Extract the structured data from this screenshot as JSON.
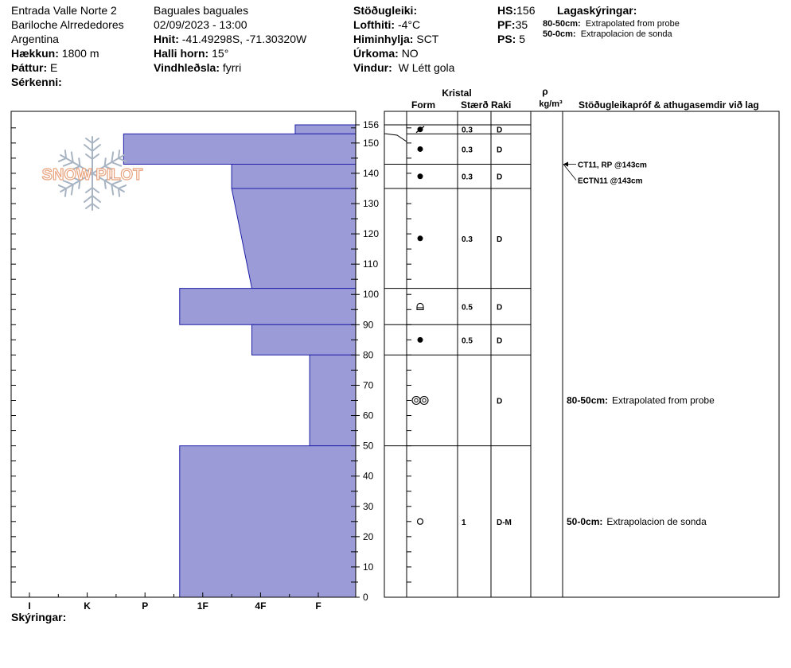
{
  "header": {
    "site_name": "Entrada Valle Norte 2",
    "location": "Bariloche Alrrededores",
    "country": "Argentina",
    "elevation_label": "Hækkun:",
    "elevation_value": "1800 m",
    "aspect_label": "Þáttur:",
    "aspect_value": "E",
    "features_label": "Sérkenni:",
    "observer": "Baguales baguales",
    "datetime": "02/09/2023 - 13:00",
    "coords_label": "Hnit:",
    "coords_value": "-41.49298S, -71.30320W",
    "slope_label": "Halli horn:",
    "slope_value": "15°",
    "wind_loading_label": "Vindhleðsla:",
    "wind_loading_value": "fyrri",
    "stability_label": "Stöðugleiki:",
    "air_temp_label": "Lofthiti:",
    "air_temp_value": "-4°C",
    "sky_label": "Himinhylja:",
    "sky_value": "SCT",
    "precip_label": "Úrkoma:",
    "precip_value": "NO",
    "wind_label": "Vindur:",
    "wind_value": "W Létt gola",
    "hs_label": "HS:",
    "hs_value": "156",
    "pf_label": "PF:",
    "pf_value": "35",
    "ps_label": "PS:",
    "ps_value": "5",
    "layer_notes_label": "Lagaskýringar:",
    "layer_notes": [
      {
        "range": "80-50cm:",
        "text": "Extrapolated from probe"
      },
      {
        "range": "50-0cm:",
        "text": "Extrapolacion de sonda"
      }
    ]
  },
  "table_headers": {
    "crystal": "Kristal",
    "form": "Form",
    "size": "Stærð",
    "wetness": "Raki",
    "rho": "ρ",
    "density_unit": "kg/m³",
    "stability_tests": "Stöðugleikapróf & athugasemdir við lag"
  },
  "footer": {
    "comments_label": "Skýringar:"
  },
  "logo": {
    "text": "SNOW PILOT"
  },
  "colors": {
    "hardness_fill": "#9B9BD8",
    "hardness_stroke": "#1F1FA8",
    "logo": "#E8A37E"
  },
  "chart_data": {
    "type": "snow-profile",
    "y_unit": "cm",
    "y_ticks": [
      0,
      10,
      20,
      30,
      40,
      50,
      60,
      70,
      80,
      90,
      100,
      110,
      120,
      130,
      140,
      150,
      156
    ],
    "ylim": [
      0,
      156
    ],
    "hardness_scale": [
      "I",
      "K",
      "P",
      "1F",
      "4F",
      "F"
    ],
    "hardness_layers": [
      {
        "from": 153,
        "to": 156,
        "hardness_index": 4.6
      },
      {
        "from": 143,
        "to": 153,
        "hardness_index": 1.63
      },
      {
        "from": 135,
        "to": 143,
        "hardness_index": 3.5
      },
      {
        "from": 102,
        "to": 135,
        "hardness_top": 3.5,
        "hardness_bottom": 3.85
      },
      {
        "from": 90,
        "to": 102,
        "hardness_index": 2.6
      },
      {
        "from": 80,
        "to": 90,
        "hardness_index": 3.85
      },
      {
        "from": 50,
        "to": 80,
        "hardness_index": 4.85
      },
      {
        "from": 0,
        "to": 50,
        "hardness_index": 2.6
      }
    ],
    "layers": [
      {
        "top": 156,
        "bottom": 153,
        "form_icon": "crossed-circle-icon",
        "size": "0.3",
        "wetness": "D"
      },
      {
        "top": 153,
        "bottom": 143,
        "form_icon": "filled-dot-icon",
        "size": "0.3",
        "wetness": "D"
      },
      {
        "top": 143,
        "bottom": 135,
        "form_icon": "filled-dot-icon",
        "size": "0.3",
        "wetness": "D"
      },
      {
        "top": 135,
        "bottom": 102,
        "form_icon": "filled-dot-icon",
        "size": "0.3",
        "wetness": "D"
      },
      {
        "top": 102,
        "bottom": 90,
        "form_icon": "cup-crystal-icon",
        "size": "0.5",
        "wetness": "D"
      },
      {
        "top": 90,
        "bottom": 80,
        "form_icon": "filled-dot-icon",
        "size": "0.5",
        "wetness": "D"
      },
      {
        "top": 80,
        "bottom": 50,
        "form_icon": "melt-cluster-icon",
        "size": "",
        "wetness": "D"
      },
      {
        "top": 50,
        "bottom": 0,
        "form_icon": "open-circle-icon",
        "size": "1",
        "wetness": "D-M"
      }
    ],
    "stability_tests": [
      {
        "depth": 143,
        "text": "CT11, RP @143cm"
      },
      {
        "depth": 143,
        "text": "ECTN11 @143cm"
      }
    ],
    "layer_comments": [
      {
        "top": 80,
        "bottom": 50,
        "range": "80-50cm:",
        "text": "Extrapolated from probe"
      },
      {
        "top": 50,
        "bottom": 0,
        "range": "50-0cm:",
        "text": "Extrapolacion de sonda"
      }
    ]
  }
}
